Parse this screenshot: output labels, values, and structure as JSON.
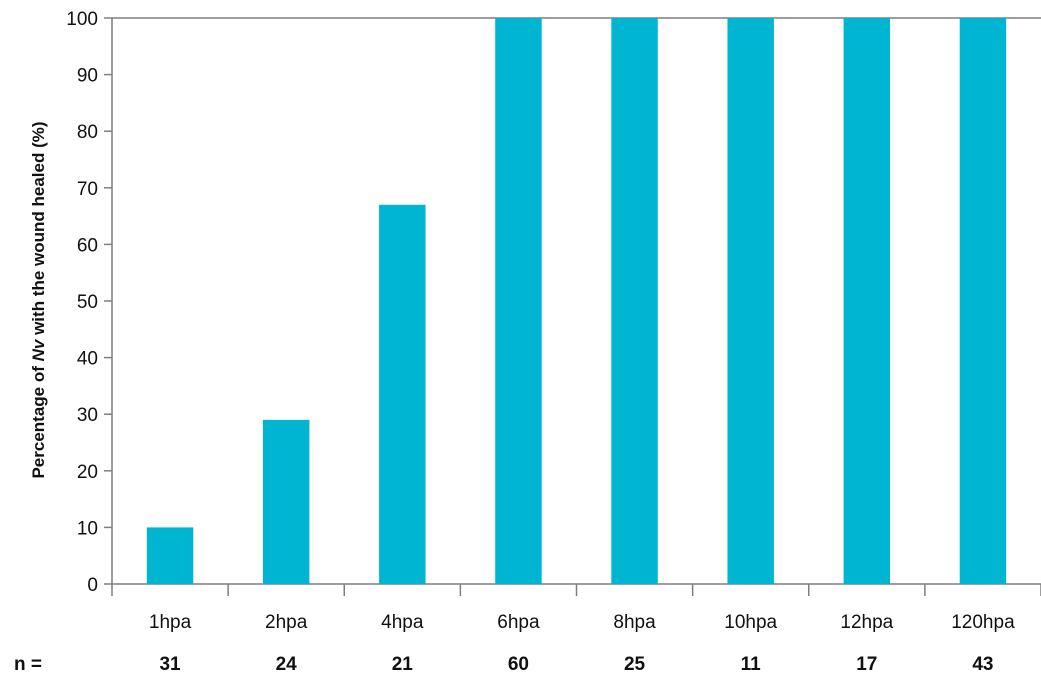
{
  "chart_data": {
    "type": "bar",
    "title": "",
    "xlabel": "",
    "ylabel": {
      "prefix": "Percentage of ",
      "italic": "Nv",
      "suffix": " with the wound healed (%)"
    },
    "ylim": [
      0,
      100
    ],
    "yticks": [
      0,
      10,
      20,
      30,
      40,
      50,
      60,
      70,
      80,
      90,
      100
    ],
    "categories": [
      "1hpa",
      "2hpa",
      "4hpa",
      "6hpa",
      "8hpa",
      "10hpa",
      "12hpa",
      "120hpa"
    ],
    "values": [
      10,
      29,
      67,
      100,
      100,
      100,
      100,
      100
    ],
    "sample_size_label": "n =",
    "sample_sizes": [
      "31",
      "24",
      "21",
      "60",
      "25",
      "11",
      "17",
      "43"
    ],
    "bar_color": "#00B5D2",
    "grid": false,
    "legend": "none"
  }
}
